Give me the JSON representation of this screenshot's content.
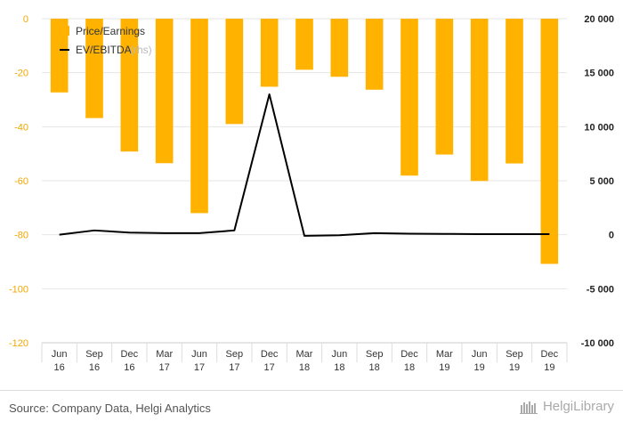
{
  "chart_data": {
    "type": "bar+line",
    "categories": [
      [
        "Jun",
        "16"
      ],
      [
        "Sep",
        "16"
      ],
      [
        "Dec",
        "16"
      ],
      [
        "Mar",
        "17"
      ],
      [
        "Jun",
        "17"
      ],
      [
        "Sep",
        "17"
      ],
      [
        "Dec",
        "17"
      ],
      [
        "Mar",
        "18"
      ],
      [
        "Jun",
        "18"
      ],
      [
        "Sep",
        "18"
      ],
      [
        "Dec",
        "18"
      ],
      [
        "Mar",
        "19"
      ],
      [
        "Jun",
        "19"
      ],
      [
        "Sep",
        "19"
      ],
      [
        "Dec",
        "19"
      ]
    ],
    "series": [
      {
        "name": "Price/Earnings",
        "type": "bar",
        "axis": "left",
        "color": "#FFB300",
        "values": [
          -27.3,
          -36.8,
          -49.2,
          -53.5,
          -72.0,
          -39.0,
          -25.2,
          -18.9,
          -21.5,
          -26.3,
          -58.1,
          -50.3,
          -60.1,
          -53.6,
          -90.8
        ]
      },
      {
        "name": "EV/EBITDA",
        "legend_suffix": " (rhs)",
        "type": "line",
        "axis": "right",
        "color": "#000000",
        "values": [
          0,
          400,
          200,
          150,
          150,
          400,
          13000,
          -100,
          -50,
          150,
          100,
          80,
          60,
          60,
          60
        ]
      }
    ],
    "left_axis": {
      "min": -120,
      "max": 0,
      "ticks": [
        0,
        -20,
        -40,
        -60,
        -80,
        -100,
        -120
      ]
    },
    "right_axis": {
      "min": -10000,
      "max": 20000,
      "ticks": [
        20000,
        15000,
        10000,
        5000,
        0,
        -5000,
        -10000
      ]
    },
    "grid": true,
    "legend_position": "top-left"
  },
  "footer": {
    "source": "Source: Company Data, Helgi Analytics",
    "brand": "HelgiLibrary"
  }
}
